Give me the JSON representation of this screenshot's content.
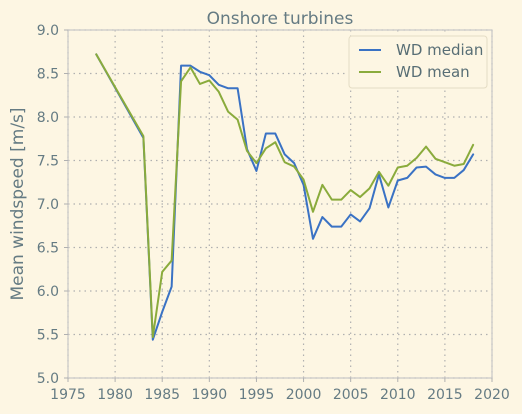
{
  "chart_data": {
    "type": "line",
    "title": "Onshore turbines",
    "xlabel": "",
    "ylabel": "Mean windspeed [m/s]",
    "xlim": [
      1975,
      2020
    ],
    "ylim": [
      5.0,
      9.0
    ],
    "xticks": [
      "1975",
      "1980",
      "1985",
      "1990",
      "1995",
      "2000",
      "2005",
      "2010",
      "2015",
      "2020"
    ],
    "yticks": [
      "5.0",
      "5.5",
      "6.0",
      "6.5",
      "7.0",
      "7.5",
      "8.0",
      "8.5",
      "9.0"
    ],
    "grid": true,
    "legend_position": "top-right",
    "background": "#fdf6e3",
    "series": [
      {
        "name": "WD median",
        "color": "#3a72c4",
        "x": [
          1978,
          1983,
          1984,
          1985,
          1986,
          1987,
          1988,
          1989,
          1990,
          1991,
          1992,
          1993,
          1994,
          1995,
          1996,
          1997,
          1998,
          1999,
          2000,
          2001,
          2002,
          2003,
          2004,
          2005,
          2006,
          2007,
          2008,
          2009,
          2010,
          2011,
          2012,
          2013,
          2014,
          2015,
          2016,
          2017,
          2018
        ],
        "y": [
          8.72,
          7.76,
          5.44,
          5.76,
          6.05,
          8.59,
          8.59,
          8.52,
          8.48,
          8.37,
          8.33,
          8.33,
          7.63,
          7.38,
          7.81,
          7.81,
          7.57,
          7.47,
          7.22,
          6.6,
          6.85,
          6.74,
          6.74,
          6.88,
          6.8,
          6.95,
          7.34,
          6.96,
          7.27,
          7.3,
          7.42,
          7.43,
          7.34,
          7.3,
          7.3,
          7.39,
          7.57
        ]
      },
      {
        "name": "WD mean",
        "color": "#8aab3c",
        "x": [
          1978,
          1983,
          1984,
          1985,
          1986,
          1987,
          1988,
          1989,
          1990,
          1991,
          1992,
          1993,
          1994,
          1995,
          1996,
          1997,
          1998,
          1999,
          2000,
          2001,
          2002,
          2003,
          2004,
          2005,
          2006,
          2007,
          2008,
          2009,
          2010,
          2011,
          2012,
          2013,
          2014,
          2015,
          2016,
          2017,
          2018
        ],
        "y": [
          8.72,
          7.78,
          5.47,
          6.22,
          6.35,
          8.41,
          8.57,
          8.38,
          8.42,
          8.29,
          8.06,
          7.97,
          7.61,
          7.47,
          7.64,
          7.71,
          7.48,
          7.43,
          7.28,
          6.91,
          7.22,
          7.05,
          7.05,
          7.16,
          7.08,
          7.18,
          7.37,
          7.21,
          7.42,
          7.44,
          7.53,
          7.66,
          7.52,
          7.48,
          7.44,
          7.46,
          7.68
        ]
      }
    ]
  }
}
